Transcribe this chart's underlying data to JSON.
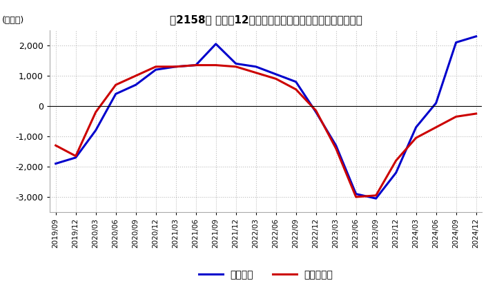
{
  "title": "［2158］ 利益だ12か月移動合計の対前年同期増減額の推移",
  "ylabel": "(百万円)",
  "ylim": [
    -3500,
    2500
  ],
  "yticks": [
    -3000,
    -2000,
    -1000,
    0,
    1000,
    2000
  ],
  "legend_labels": [
    "経常利益",
    "当期純利益"
  ],
  "line_colors": [
    "#0000cc",
    "#cc0000"
  ],
  "background_color": "#ffffff",
  "grid_color": "#bbbbbb",
  "x_labels": [
    "2019/09",
    "2019/12",
    "2020/03",
    "2020/06",
    "2020/09",
    "2020/12",
    "2021/03",
    "2021/06",
    "2021/09",
    "2021/12",
    "2022/03",
    "2022/06",
    "2022/09",
    "2022/12",
    "2023/03",
    "2023/06",
    "2023/09",
    "2023/12",
    "2024/03",
    "2024/06",
    "2024/09",
    "2024/12"
  ],
  "series1": [
    -1900,
    -1700,
    -800,
    400,
    700,
    1200,
    1300,
    1350,
    2050,
    1400,
    1300,
    1050,
    800,
    -200,
    -1300,
    -2900,
    -3050,
    -2200,
    -700,
    100,
    2100,
    2300
  ],
  "series2": [
    -1300,
    -1650,
    -200,
    700,
    1000,
    1300,
    1300,
    1350,
    1350,
    1300,
    1100,
    900,
    550,
    -150,
    -1400,
    -3000,
    -2950,
    -1800,
    -1050,
    -700,
    -350,
    -250
  ]
}
